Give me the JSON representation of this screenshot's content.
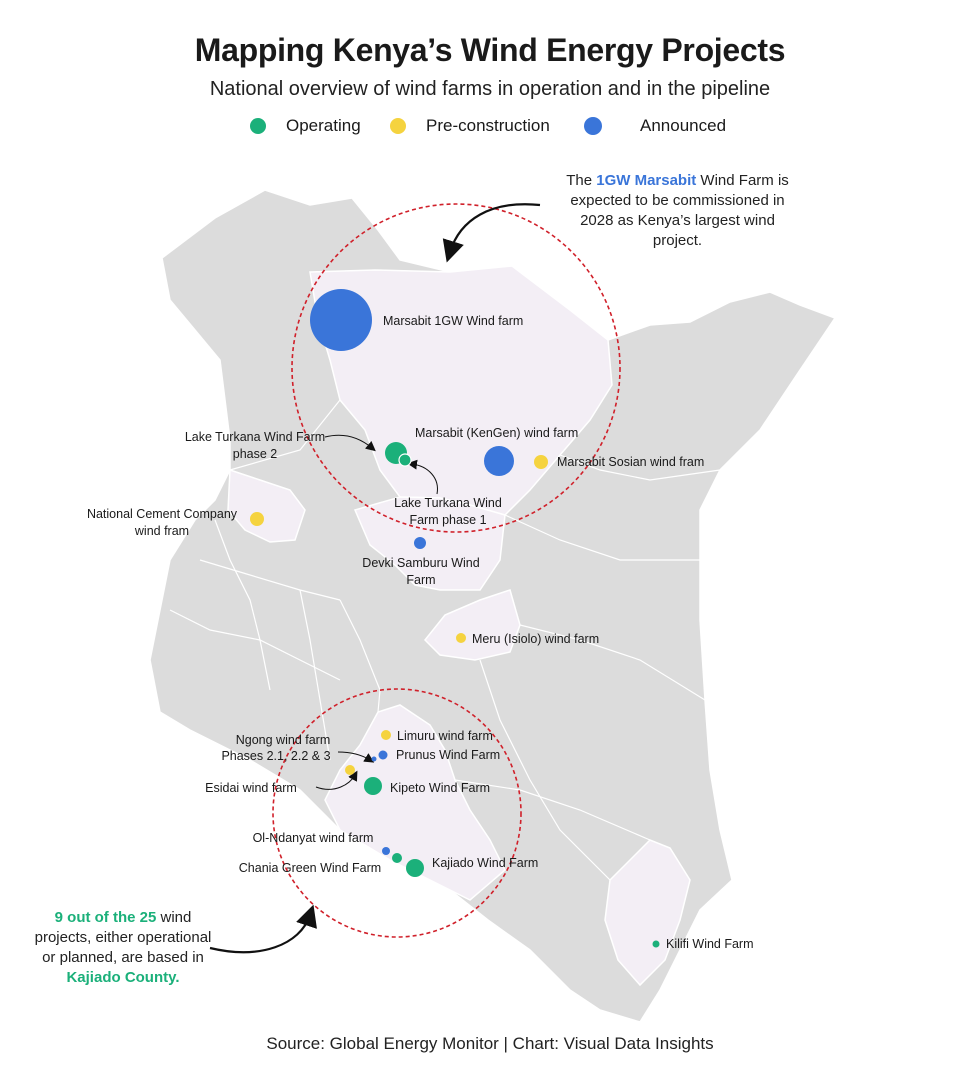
{
  "header": {
    "title": "Mapping Kenya’s Wind Energy Projects",
    "subtitle": "National overview of wind farms in operation and in the pipeline"
  },
  "legend": [
    {
      "label": "Operating",
      "color": "#1bb07a"
    },
    {
      "label": "Pre-construction",
      "color": "#f5d33f"
    },
    {
      "label": "Announced",
      "color": "#3a75d9"
    }
  ],
  "colors": {
    "map_fill": "#dcdcdc",
    "highlight_fill": "#f3eef5",
    "boundary": "#ffffff",
    "circle": "#d0202a"
  },
  "annotations": {
    "marsabit": {
      "pre": "The ",
      "highlight": "1GW Marsabit",
      "post": " Wind Farm is",
      "line2": "expected to be commissioned in",
      "line3": "2028 as Kenya’s largest wind",
      "line4": "project."
    },
    "kajiado": {
      "highlight1": "9 out of the 25",
      "post1": " wind",
      "line2": "projects, either operational",
      "line3": "or planned, are based in",
      "highlight2": "Kajiado County."
    }
  },
  "projects": [
    {
      "name": "Marsabit 1GW Wind farm",
      "status": "Announced"
    },
    {
      "name": "Lake Turkana Wind Farm phase 2",
      "status": "Operating"
    },
    {
      "name": "Lake Turkana Wind Farm phase 1",
      "status": "Operating"
    },
    {
      "name": "Marsabit (KenGen) wind farm",
      "status": "Announced"
    },
    {
      "name": "Marsabit Sosian wind fram",
      "status": "Pre-construction"
    },
    {
      "name": "National Cement Company wind fram",
      "status": "Pre-construction"
    },
    {
      "name": "Devki Samburu Wind Farm",
      "status": "Announced"
    },
    {
      "name": "Meru (Isiolo) wind farm",
      "status": "Pre-construction"
    },
    {
      "name": "Limuru wind farm",
      "status": "Pre-construction"
    },
    {
      "name": "Ngong wind farm Phases 2.1, 2.2 & 3",
      "status": "Announced"
    },
    {
      "name": "Prunus  Wind Farm",
      "status": "Announced"
    },
    {
      "name": "Esidai wind farm",
      "status": "Pre-construction"
    },
    {
      "name": "Kipeto  Wind Farm",
      "status": "Operating"
    },
    {
      "name": "Ol-Ndanyat wind farm",
      "status": "Announced"
    },
    {
      "name": "Chania Green Wind Farm",
      "status": "Operating"
    },
    {
      "name": "Kajiado Wind Farm",
      "status": "Operating"
    },
    {
      "name": "Kilifi Wind Farm",
      "status": "Operating"
    }
  ],
  "labels": {
    "marsabit_1gw": "Marsabit 1GW Wind farm",
    "turkana2_l1": "Lake Turkana Wind Farm",
    "turkana2_l2": "phase 2",
    "kengen": "Marsabit (KenGen) wind farm",
    "sosian": "Marsabit Sosian wind fram",
    "turkana1_l1": "Lake Turkana Wind",
    "turkana1_l2": "Farm phase 1",
    "cement_l1": "National Cement Company",
    "cement_l2": "wind fram",
    "devki_l1": "Devki Samburu Wind",
    "devki_l2": "Farm",
    "meru": "Meru (Isiolo) wind farm",
    "limuru": "Limuru wind farm",
    "ngong_l1": "Ngong wind farm",
    "ngong_l2": "Phases 2.1, 2.2 & 3",
    "prunus": "Prunus  Wind Farm",
    "esidai": "Esidai wind farm",
    "kipeto": "Kipeto  Wind Farm",
    "olndanyat": "Ol-Ndanyat wind farm",
    "chania": "Chania Green Wind Farm",
    "kajiado": "Kajiado Wind Farm",
    "kilifi": "Kilifi Wind Farm"
  },
  "footer": {
    "source": "Source: Global Energy Monitor | Chart: Visual Data Insights"
  }
}
